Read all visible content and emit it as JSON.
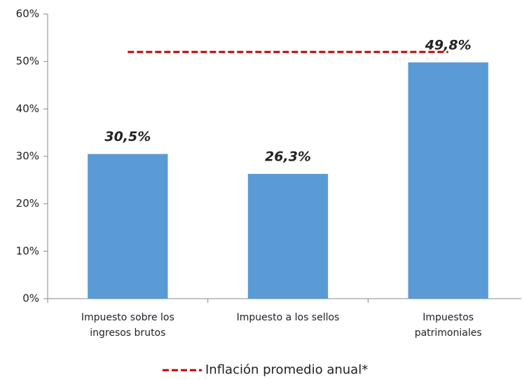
{
  "chart_data": {
    "type": "bar",
    "categories": [
      "Impuesto sobre los ingresos brutos",
      "Impuesto a los sellos",
      "Impuestos patrimoniales"
    ],
    "values": [
      30.5,
      26.3,
      49.8
    ],
    "value_labels": [
      "30,5%",
      "26,3%",
      "49,8%"
    ],
    "color": "#5b9bd5",
    "line": {
      "name": "Inflación promedio anual*",
      "value": 52,
      "color": "#c00000"
    },
    "ylim": [
      0,
      60
    ],
    "yticks": [
      {
        "value": 0,
        "label": "0%"
      },
      {
        "value": 10,
        "label": "10%"
      },
      {
        "value": 20,
        "label": "20%"
      },
      {
        "value": 30,
        "label": "30%"
      },
      {
        "value": 40,
        "label": "40%"
      },
      {
        "value": 50,
        "label": "50%"
      },
      {
        "value": 60,
        "label": "60%"
      }
    ]
  }
}
